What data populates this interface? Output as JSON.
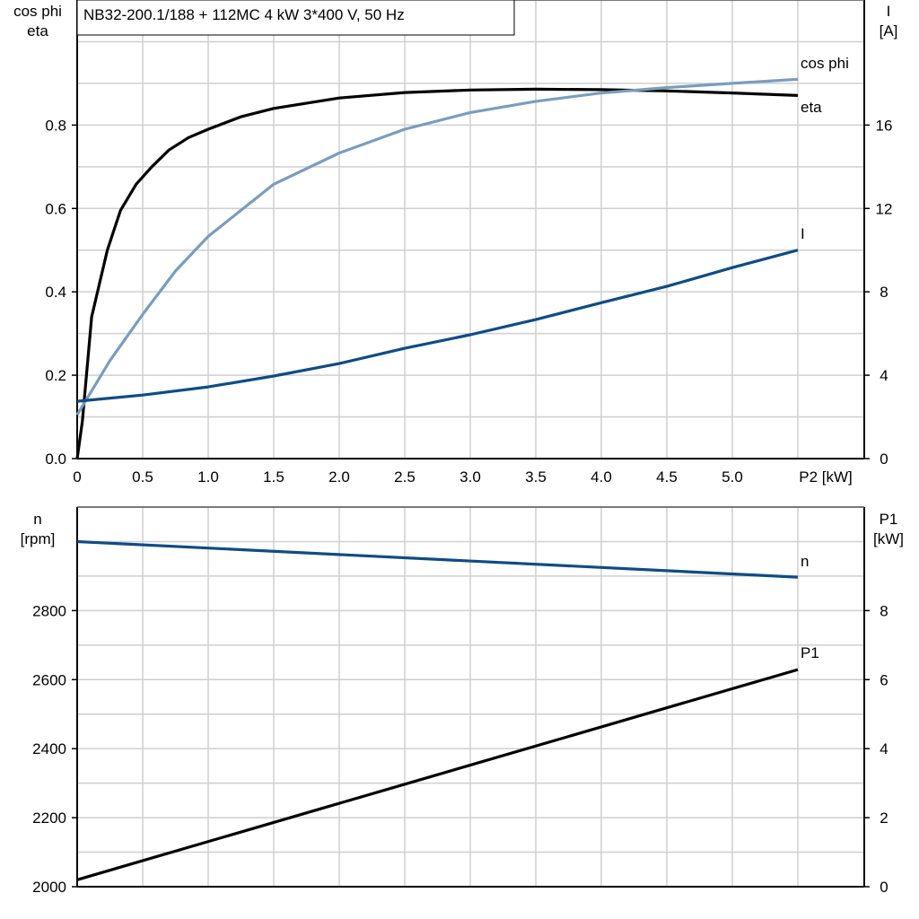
{
  "title": "NB32-200.1/188 + 112MC   4 kW   3*400 V, 50 Hz",
  "chart_data": [
    {
      "type": "line",
      "ylabel_left": [
        "cos phi",
        "eta"
      ],
      "ylabel_right": [
        "I",
        "[A]"
      ],
      "xlabel": "P2 [kW]",
      "xlim": [
        0,
        6
      ],
      "ylim_left": [
        0,
        1.1
      ],
      "ylim_right": [
        0,
        22
      ],
      "xticks": [
        "0",
        "0.5",
        "1.0",
        "1.5",
        "2.0",
        "2.5",
        "3.0",
        "3.5",
        "4.0",
        "4.5",
        "5.0"
      ],
      "xtick_values": [
        0,
        0.5,
        1.0,
        1.5,
        2.0,
        2.5,
        3.0,
        3.5,
        4.0,
        4.5,
        5.0
      ],
      "yticks_left": [
        "0.0",
        "0.2",
        "0.4",
        "0.6",
        "0.8"
      ],
      "ytick_left_values": [
        0,
        0.2,
        0.4,
        0.6,
        0.8
      ],
      "yticks_right": [
        "0",
        "4",
        "8",
        "12",
        "16"
      ],
      "ytick_right_values": [
        0,
        4,
        8,
        12,
        16
      ],
      "grid": true,
      "series": [
        {
          "name": "eta",
          "axis": "left",
          "color": "#000000",
          "x": [
            0,
            0.04,
            0.11,
            0.23,
            0.33,
            0.45,
            0.57,
            0.7,
            0.85,
            1.0,
            1.25,
            1.5,
            2.0,
            2.5,
            3.0,
            3.5,
            4.0,
            4.5,
            5.0,
            5.5
          ],
          "y": [
            0,
            0.09,
            0.34,
            0.5,
            0.595,
            0.658,
            0.7,
            0.74,
            0.77,
            0.79,
            0.82,
            0.84,
            0.865,
            0.878,
            0.884,
            0.886,
            0.885,
            0.882,
            0.877,
            0.871
          ]
        },
        {
          "name": "cos phi",
          "axis": "left",
          "color": "#7a9dbd",
          "x": [
            0,
            0.25,
            0.5,
            0.75,
            1.0,
            1.5,
            2.0,
            2.5,
            3.0,
            3.5,
            4.0,
            4.5,
            5.0,
            5.5
          ],
          "y": [
            0.105,
            0.235,
            0.346,
            0.45,
            0.533,
            0.658,
            0.733,
            0.79,
            0.83,
            0.857,
            0.877,
            0.89,
            0.9,
            0.91
          ]
        },
        {
          "name": "I",
          "axis": "right",
          "color": "#0f4c85",
          "x": [
            0,
            0.5,
            1.0,
            1.5,
            2.0,
            2.5,
            3.0,
            3.5,
            4.0,
            4.5,
            5.0,
            5.5
          ],
          "y": [
            2.75,
            3.05,
            3.44,
            3.96,
            4.56,
            5.29,
            5.94,
            6.67,
            7.48,
            8.26,
            9.16,
            10.0
          ]
        }
      ]
    },
    {
      "type": "line",
      "ylabel_left": [
        "n",
        "[rpm]"
      ],
      "ylabel_right": [
        "P1",
        "[kW]"
      ],
      "xlim": [
        0,
        6
      ],
      "ylim_left": [
        2000,
        3100
      ],
      "ylim_right": [
        0,
        11
      ],
      "yticks_left": [
        "2000",
        "2200",
        "2400",
        "2600",
        "2800"
      ],
      "ytick_left_values": [
        2000,
        2200,
        2400,
        2600,
        2800
      ],
      "yticks_right": [
        "0",
        "2",
        "4",
        "6",
        "8"
      ],
      "ytick_right_values": [
        0,
        2,
        4,
        6,
        8
      ],
      "grid": true,
      "series": [
        {
          "name": "n",
          "axis": "left",
          "color": "#0f4c85",
          "x": [
            0,
            5.5
          ],
          "y": [
            3000,
            2897
          ]
        },
        {
          "name": "P1",
          "axis": "right",
          "color": "#000000",
          "x": [
            0,
            5.5
          ],
          "y": [
            0.2,
            6.29
          ]
        }
      ]
    }
  ]
}
